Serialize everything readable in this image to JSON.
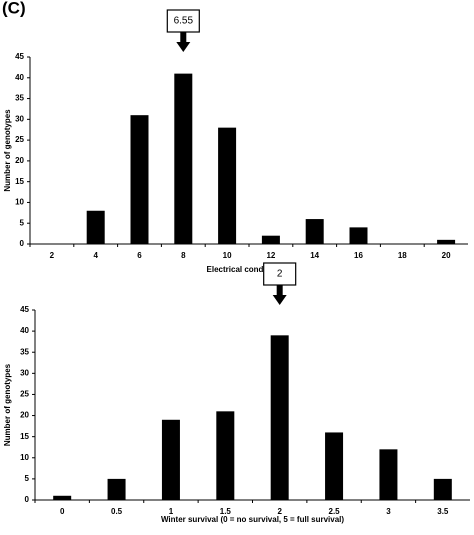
{
  "panel_label": "(C)",
  "chart_data": [
    {
      "type": "bar",
      "x_label": "Electrical conductivity",
      "y_label": "Number of genotypes",
      "categories": [
        "2",
        "4",
        "6",
        "8",
        "10",
        "12",
        "14",
        "16",
        "18",
        "20"
      ],
      "values": [
        0,
        8,
        31,
        41,
        28,
        2,
        6,
        4,
        0,
        1
      ],
      "color": "#000000",
      "ylim": [
        0,
        45
      ],
      "yticks": [
        0,
        5,
        10,
        15,
        20,
        25,
        30,
        35,
        40,
        45
      ],
      "annotation": {
        "text": "6.55",
        "at": "8"
      }
    },
    {
      "type": "bar",
      "x_label": "Winter survival (0 = no survival, 5 = full survival)",
      "y_label": "Number of genotypes",
      "categories": [
        "0",
        "0.5",
        "1",
        "1.5",
        "2",
        "2.5",
        "3",
        "3.5"
      ],
      "values": [
        1,
        5,
        19,
        21,
        39,
        16,
        12,
        5
      ],
      "color": "#000000",
      "ylim": [
        0,
        45
      ],
      "yticks": [
        0,
        5,
        10,
        15,
        20,
        25,
        30,
        35,
        40,
        45
      ],
      "annotation": {
        "text": "2",
        "at": "2"
      }
    }
  ]
}
